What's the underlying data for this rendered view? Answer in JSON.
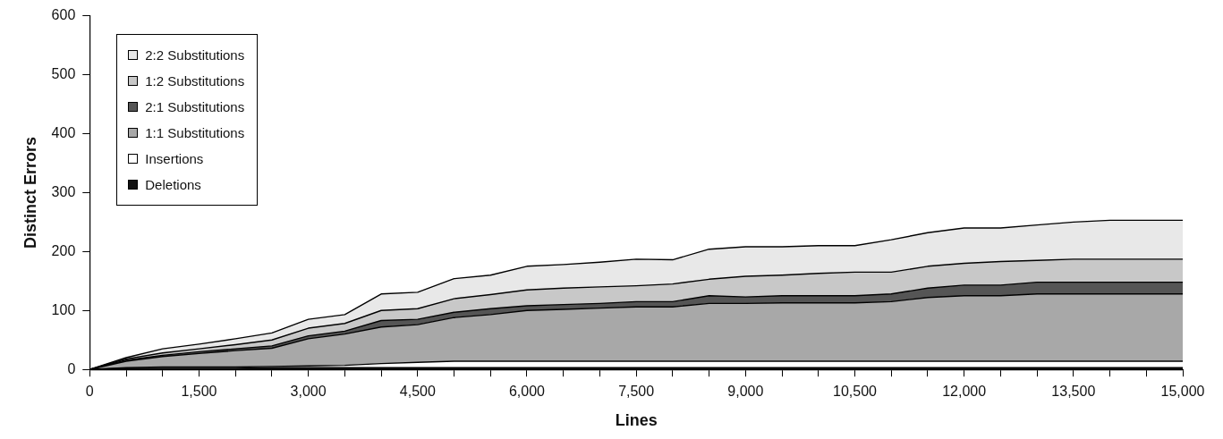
{
  "chart_data": {
    "type": "area",
    "stacked": true,
    "xlabel": "Lines",
    "ylabel": "Distinct Errors",
    "legend": "top left",
    "grid": false,
    "xlim": [
      0,
      15000
    ],
    "ylim": [
      0,
      600
    ],
    "yticks": [
      0,
      100,
      200,
      300,
      400,
      500,
      600
    ],
    "xticks": [
      0,
      {
        "value": 500,
        "label": null
      },
      {
        "value": 1000,
        "label": null
      },
      {
        "value": 1500,
        "label": "1,500"
      },
      {
        "value": 2000,
        "label": null
      },
      {
        "value": 2500,
        "label": null
      },
      {
        "value": 3000,
        "label": "3,000"
      },
      {
        "value": 3500,
        "label": null
      },
      {
        "value": 4000,
        "label": null
      },
      {
        "value": 4500,
        "label": "4,500"
      },
      {
        "value": 5000,
        "label": null
      },
      {
        "value": 5500,
        "label": null
      },
      {
        "value": 6000,
        "label": "6,000"
      },
      {
        "value": 6500,
        "label": null
      },
      {
        "value": 7000,
        "label": null
      },
      {
        "value": 7500,
        "label": "7,500"
      },
      {
        "value": 8000,
        "label": null
      },
      {
        "value": 8500,
        "label": null
      },
      {
        "value": 9000,
        "label": "9,000"
      },
      {
        "value": 9500,
        "label": null
      },
      {
        "value": 10000,
        "label": null
      },
      {
        "value": 10500,
        "label": "10,500"
      },
      {
        "value": 11000,
        "label": null
      },
      {
        "value": 11500,
        "label": null
      },
      {
        "value": 12000,
        "label": "12,000"
      },
      {
        "value": 12500,
        "label": null
      },
      {
        "value": 13000,
        "label": null
      },
      {
        "value": 13500,
        "label": "13,500"
      },
      {
        "value": 14000,
        "label": null
      },
      {
        "value": 14500,
        "label": null
      },
      {
        "value": 15000,
        "label": "15,000"
      }
    ],
    "x": [
      0,
      500,
      1000,
      1500,
      2000,
      2500,
      3000,
      3500,
      4000,
      4500,
      5000,
      5500,
      6000,
      6500,
      7000,
      7500,
      8000,
      8500,
      9000,
      9500,
      10000,
      10500,
      11000,
      11500,
      12000,
      12500,
      13000,
      13500,
      14000,
      14500,
      15000
    ],
    "series": [
      {
        "name": "Deletions",
        "color": "#111111",
        "values": [
          0,
          2,
          2,
          2,
          2,
          3,
          3,
          3,
          3,
          3,
          3,
          3,
          3,
          3,
          3,
          3,
          3,
          3,
          3,
          3,
          3,
          3,
          3,
          3,
          3,
          3,
          3,
          3,
          3,
          3,
          3
        ]
      },
      {
        "name": "Insertions",
        "color": "#ffffff",
        "values": [
          0,
          1,
          2,
          2,
          2,
          2,
          3,
          4,
          7,
          9,
          11,
          11,
          11,
          11,
          11,
          11,
          11,
          11,
          11,
          11,
          11,
          11,
          11,
          11,
          11,
          11,
          11,
          11,
          11,
          11,
          11
        ]
      },
      {
        "name": "1:1 Substitutions",
        "color": "#a8a8a8",
        "values": [
          0,
          11,
          18,
          23,
          28,
          31,
          46,
          53,
          62,
          64,
          74,
          79,
          86,
          88,
          90,
          92,
          92,
          98,
          98,
          99,
          99,
          99,
          101,
          108,
          111,
          111,
          114,
          114,
          114,
          114,
          114
        ]
      },
      {
        "name": "2:1 Substitutions",
        "color": "#555555",
        "values": [
          0,
          2,
          2,
          3,
          3,
          4,
          5,
          5,
          11,
          9,
          9,
          10,
          8,
          8,
          8,
          9,
          9,
          13,
          11,
          12,
          12,
          12,
          13,
          16,
          18,
          18,
          20,
          20,
          20,
          20,
          20
        ]
      },
      {
        "name": "1:2 Substitutions",
        "color": "#c8c8c8",
        "values": [
          0,
          2,
          4,
          5,
          7,
          10,
          13,
          13,
          17,
          18,
          23,
          24,
          27,
          28,
          28,
          27,
          30,
          28,
          35,
          35,
          38,
          40,
          37,
          37,
          37,
          40,
          37,
          39,
          39,
          39,
          39
        ]
      },
      {
        "name": "2:2 Substitutions",
        "color": "#e8e8e8",
        "values": [
          0,
          2,
          7,
          8,
          10,
          12,
          15,
          15,
          28,
          28,
          34,
          33,
          40,
          40,
          42,
          45,
          41,
          51,
          50,
          48,
          47,
          45,
          55,
          57,
          60,
          57,
          60,
          63,
          66,
          66,
          66
        ]
      }
    ]
  }
}
